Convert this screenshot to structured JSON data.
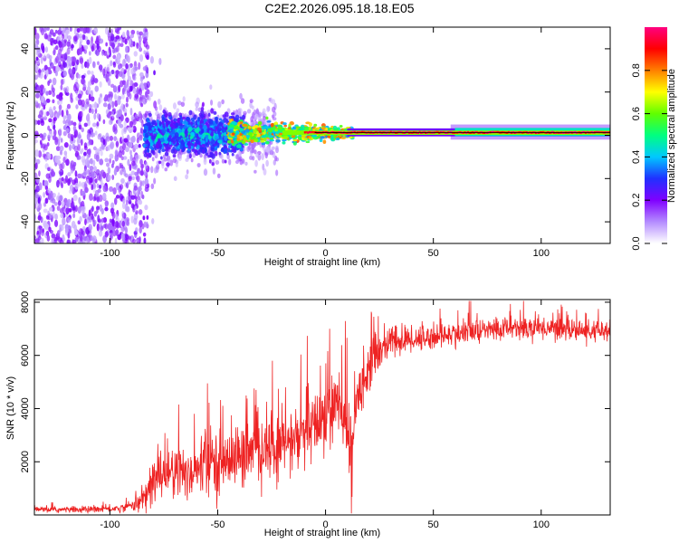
{
  "title": "C2E2.2026.095.18.18.E05",
  "chart_data": [
    {
      "type": "heatmap",
      "name": "spectrogram",
      "xlabel": "Height of straight line (km)",
      "ylabel": "Frequency (Hz)",
      "xlim": [
        -135,
        132
      ],
      "ylim": [
        -50,
        50
      ],
      "xticks": [
        -100,
        -50,
        0,
        50,
        100
      ],
      "yticks": [
        -40,
        -20,
        0,
        20,
        40
      ],
      "colorbar": {
        "label": "Normalized spectral amplitude",
        "range": [
          0,
          1
        ],
        "ticks": [
          "0.0",
          "0.2",
          "0.4",
          "0.6",
          "0.8"
        ],
        "colors": [
          "#ffffff",
          "#b48cff",
          "#8000ff",
          "#2030ff",
          "#00c8ff",
          "#00ff80",
          "#60ff00",
          "#ffff00",
          "#ff8000",
          "#ff0000",
          "#ff0080"
        ]
      },
      "regions": [
        {
          "x_range": [
            -135,
            -83
          ],
          "freq_range": [
            -50,
            50
          ],
          "amplitude": "low (0.05-0.2) scattered noise"
        },
        {
          "x_range": [
            -85,
            -40
          ],
          "freq_range": [
            -10,
            10
          ],
          "amplitude": "0.2-0.6 broadband"
        },
        {
          "x_range": [
            -40,
            10
          ],
          "freq_range": [
            -3,
            5
          ],
          "amplitude": "0.4-0.9 narrowing"
        },
        {
          "x_range": [
            10,
            132
          ],
          "freq_range": [
            0,
            2
          ],
          "amplitude": "0.8-1.0 narrow line"
        }
      ]
    },
    {
      "type": "line",
      "name": "snr",
      "xlabel": "Height of straight line (km)",
      "ylabel": "SNR (10 * v/v)",
      "xlim": [
        -135,
        132
      ],
      "ylim": [
        0,
        8100
      ],
      "xticks": [
        -100,
        -50,
        0,
        50,
        100
      ],
      "yticks": [
        2000,
        4000,
        6000,
        8000
      ],
      "series": [
        {
          "name": "SNR",
          "color": "#ee2222",
          "envelope_x": [
            -135,
            -110,
            -95,
            -85,
            -80,
            -75,
            -70,
            -60,
            -50,
            -40,
            -30,
            -20,
            -10,
            -5,
            0,
            5,
            10,
            12,
            15,
            20,
            25,
            30,
            40,
            50,
            60,
            70,
            80,
            90,
            100,
            110,
            120,
            132
          ],
          "envelope_y": [
            200,
            200,
            250,
            500,
            1200,
            1700,
            1500,
            1700,
            2000,
            2200,
            2400,
            2600,
            3000,
            3300,
            3800,
            4200,
            3300,
            2200,
            4600,
            5600,
            6200,
            6500,
            6600,
            6700,
            6800,
            6900,
            7000,
            7050,
            7050,
            7000,
            6900,
            6900
          ],
          "noise_amp_x": [
            -135,
            -90,
            -82,
            -70,
            -40,
            -10,
            10,
            20,
            40,
            132
          ],
          "noise_amp_y": [
            100,
            150,
            900,
            1100,
            1200,
            1300,
            1500,
            900,
            500,
            400
          ]
        }
      ]
    }
  ]
}
